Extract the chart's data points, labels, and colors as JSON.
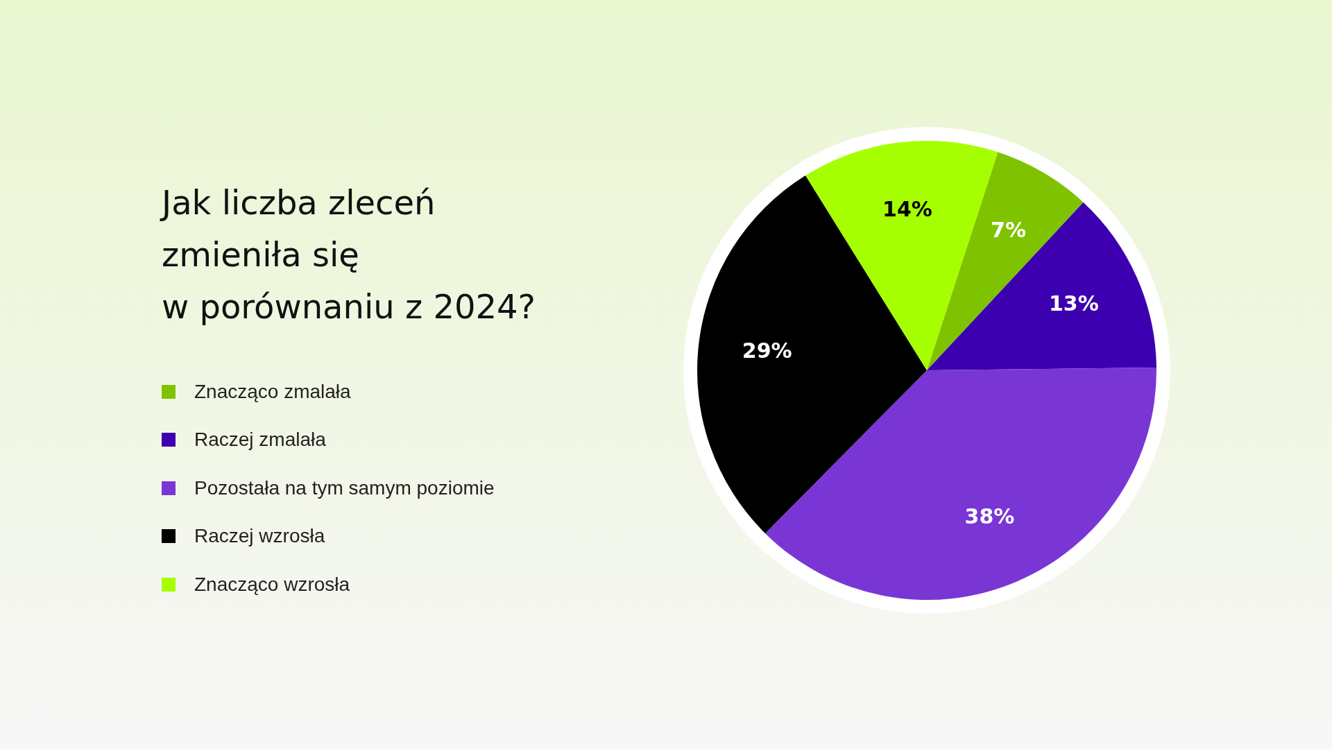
{
  "chart_data": {
    "type": "pie",
    "title": "Jak liczba zleceń\nzmieniła się\nw porównaniu z 2024?",
    "categories": [
      "Znacząco zmalała",
      "Raczej zmalała",
      "Pozostała na tym samym poziomie",
      "Raczej wzrosła",
      "Znacząco wzrosła"
    ],
    "values": [
      7,
      13,
      38,
      29,
      14
    ],
    "colors": [
      "#7fc300",
      "#3d00b0",
      "#7a36d4",
      "#000000",
      "#a6ff00"
    ],
    "value_labels": [
      "7%",
      "13%",
      "38%",
      "29%",
      "14%"
    ],
    "legend": "left"
  }
}
